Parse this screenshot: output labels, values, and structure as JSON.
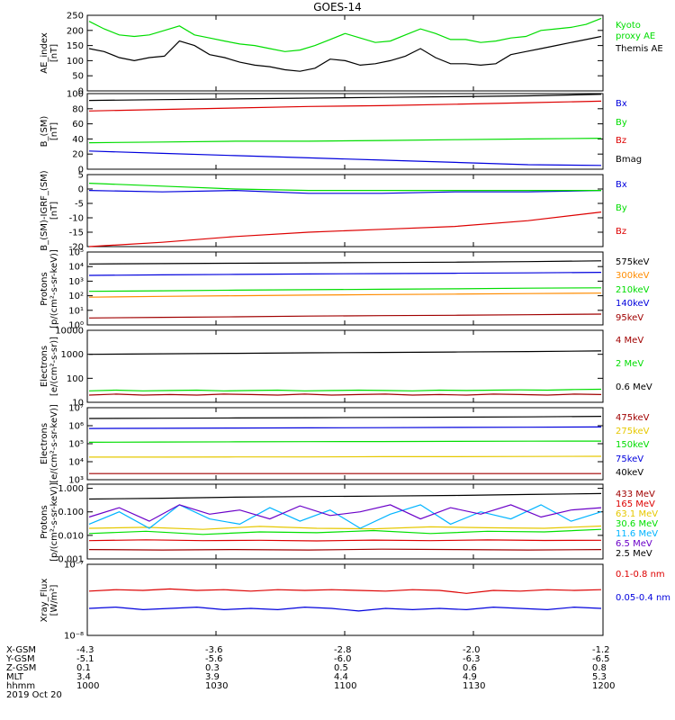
{
  "title": "GOES-14",
  "colors": {
    "black": "#000000",
    "red": "#dd0000",
    "green": "#00dd00",
    "blue": "#0000dd",
    "orange": "#ff8c00",
    "yellow": "#e6c800",
    "purple": "#6a00c8",
    "cyan": "#00b4ff",
    "lime": "#00e000",
    "darkred": "#a00000"
  },
  "chart_data": [
    {
      "type": "line",
      "ylabel": "AE_index\n[nT]",
      "ylim": [
        0,
        250
      ],
      "yticks": [
        "0",
        "50",
        "100",
        "150",
        "200",
        "250"
      ],
      "yvals": [
        0,
        50,
        100,
        150,
        200,
        250
      ],
      "series": [
        {
          "name": "Kyoto\nproxy AE",
          "color": "green",
          "values": [
            230,
            205,
            185,
            180,
            185,
            200,
            215,
            185,
            175,
            165,
            155,
            150,
            140,
            130,
            135,
            150,
            170,
            190,
            175,
            160,
            165,
            185,
            205,
            190,
            170,
            170,
            160,
            165,
            175,
            180,
            200,
            205,
            210,
            220,
            240
          ]
        },
        {
          "name": "Themis AE",
          "color": "black",
          "values": [
            140,
            130,
            110,
            100,
            110,
            115,
            165,
            150,
            120,
            110,
            95,
            85,
            80,
            70,
            65,
            75,
            105,
            100,
            85,
            90,
            100,
            115,
            140,
            110,
            90,
            90,
            85,
            90,
            120,
            130,
            140,
            150,
            160,
            170,
            180
          ]
        }
      ]
    },
    {
      "type": "line",
      "ylabel": "B_(SM)\n[nT]",
      "ylim": [
        0,
        100
      ],
      "yticks": [
        "0",
        "20",
        "40",
        "60",
        "80",
        "100"
      ],
      "yvals": [
        0,
        20,
        40,
        60,
        80,
        100
      ],
      "series": [
        {
          "name": "Bx",
          "color": "blue",
          "values": [
            24,
            21,
            18,
            15,
            12,
            9,
            6,
            5
          ]
        },
        {
          "name": "By",
          "color": "green",
          "values": [
            35,
            36,
            37,
            37,
            38,
            39,
            40,
            41
          ]
        },
        {
          "name": "Bz",
          "color": "red",
          "values": [
            77,
            79,
            81,
            83,
            84,
            86,
            88,
            90
          ]
        },
        {
          "name": "Bmag",
          "color": "black",
          "values": [
            91,
            92,
            93,
            94,
            95,
            96,
            97,
            99
          ]
        }
      ]
    },
    {
      "type": "line",
      "ylabel": "B_(SM)-IGRF_(SM)\n[nT]",
      "ylim": [
        -20,
        5
      ],
      "yticks": [
        "-20",
        "-15",
        "-10",
        "-5",
        "0",
        "5"
      ],
      "yvals": [
        -20,
        -15,
        -10,
        -5,
        0,
        5
      ],
      "series": [
        {
          "name": "Bx",
          "color": "blue",
          "values": [
            -0.5,
            -1,
            -0.5,
            -1.5,
            -1.5,
            -1,
            -1,
            -0.5
          ]
        },
        {
          "name": "By",
          "color": "green",
          "values": [
            2,
            1,
            0,
            -0.5,
            -0.5,
            -0.5,
            -0.5,
            -0.5
          ]
        },
        {
          "name": "Bz",
          "color": "red",
          "values": [
            -20,
            -18.5,
            -16.5,
            -15,
            -14,
            -13,
            -11,
            -8
          ]
        }
      ]
    },
    {
      "type": "line",
      "log": true,
      "ylabel": "Protons\n[p/(cm²-s-sr-keV)]",
      "ylim": [
        1,
        100000
      ],
      "yticks": [
        "10⁰",
        "10¹",
        "10²",
        "10³",
        "10⁴",
        "10⁵"
      ],
      "yvals": [
        1,
        10,
        100,
        1000,
        10000,
        100000
      ],
      "series": [
        {
          "name": "575keV",
          "color": "black",
          "values": [
            15000,
            16000,
            17000,
            18000,
            19000,
            20000,
            22000,
            25000
          ]
        },
        {
          "name": "300keV",
          "color": "orange",
          "values": [
            80,
            90,
            100,
            110,
            120,
            130,
            140,
            150
          ]
        },
        {
          "name": "210keV",
          "color": "green",
          "values": [
            200,
            220,
            240,
            260,
            280,
            300,
            330,
            350
          ]
        },
        {
          "name": "140keV",
          "color": "blue",
          "values": [
            2500,
            2700,
            2900,
            3100,
            3300,
            3500,
            3700,
            4000
          ]
        },
        {
          "name": "95keV",
          "color": "darkred",
          "values": [
            3,
            3.3,
            3.6,
            4,
            4.3,
            4.6,
            5,
            5.5
          ]
        }
      ]
    },
    {
      "type": "line",
      "log": true,
      "ylabel": "Electrons\n[e/(cm²-s-sr)]",
      "ylim": [
        10,
        10000
      ],
      "yticks": [
        "10",
        "100",
        "1000",
        "10000"
      ],
      "yvals": [
        10,
        100,
        1000,
        10000
      ],
      "series": [
        {
          "name": "4 MeV",
          "color": "darkred",
          "values": [
            20,
            22,
            20,
            21,
            20,
            22,
            21,
            20,
            22,
            20,
            21,
            22,
            20,
            21,
            20,
            22,
            21,
            20,
            22,
            21
          ]
        },
        {
          "name": "2 MeV",
          "color": "green",
          "values": [
            30,
            32,
            30,
            31,
            32,
            30,
            31,
            32,
            30,
            31,
            32,
            31,
            30,
            32,
            31,
            32,
            33,
            32,
            34,
            35
          ]
        },
        {
          "name": "0.6 MeV",
          "color": "black",
          "values": [
            1000,
            1050,
            1100,
            1150,
            1200,
            1250,
            1300,
            1380
          ]
        }
      ]
    },
    {
      "type": "line",
      "log": true,
      "ylabel": "Electrons\n[e/(cm²-s-sr-keV)]",
      "ylim": [
        1000,
        10000000
      ],
      "yticks": [
        "10³",
        "10⁴",
        "10⁵",
        "10⁶",
        "10⁷"
      ],
      "yvals": [
        1000,
        10000,
        100000,
        1000000,
        10000000
      ],
      "series": [
        {
          "name": "475keV",
          "color": "darkred",
          "values": [
            2200,
            2200,
            2200,
            2200,
            2200,
            2200,
            2200,
            2200
          ]
        },
        {
          "name": "275keV",
          "color": "yellow",
          "values": [
            18000,
            18000,
            18500,
            18500,
            19000,
            19000,
            19500,
            20000
          ]
        },
        {
          "name": "150keV",
          "color": "green",
          "values": [
            120000,
            125000,
            128000,
            130000,
            132000,
            135000,
            138000,
            140000
          ]
        },
        {
          "name": "75keV",
          "color": "blue",
          "values": [
            700000,
            720000,
            740000,
            760000,
            780000,
            800000,
            820000,
            850000
          ]
        },
        {
          "name": "40keV",
          "color": "black",
          "values": [
            2500000,
            2600000,
            2700000,
            2800000,
            2900000,
            3000000,
            3100000,
            3300000
          ]
        }
      ]
    },
    {
      "type": "line",
      "log": true,
      "ylabel": "Protons\n[p/(cm²-s-sr-keV)]",
      "ylim": [
        0.001,
        1.5
      ],
      "yticks": [
        "0.001",
        "0.010",
        "0.100",
        "1.000"
      ],
      "yvals": [
        0.001,
        0.01,
        0.1,
        1
      ],
      "series": [
        {
          "name": "433 MeV",
          "color": "darkred",
          "values": [
            0.0025,
            0.0024,
            0.0025,
            0.0024,
            0.0026,
            0.0025,
            0.0024,
            0.0025
          ]
        },
        {
          "name": "165 MeV",
          "color": "red",
          "values": [
            0.006,
            0.0065,
            0.006,
            0.0062,
            0.0058,
            0.0063,
            0.006,
            0.0064,
            0.0061,
            0.0062
          ]
        },
        {
          "name": "63.1 MeV",
          "color": "yellow",
          "values": [
            0.02,
            0.022,
            0.018,
            0.024,
            0.02,
            0.019,
            0.023,
            0.021,
            0.02,
            0.025
          ]
        },
        {
          "name": "30.6 MeV",
          "color": "lime",
          "values": [
            0.012,
            0.015,
            0.011,
            0.014,
            0.013,
            0.016,
            0.012,
            0.015,
            0.014,
            0.018
          ]
        },
        {
          "name": "11.6 MeV",
          "color": "cyan",
          "values": [
            0.03,
            0.1,
            0.02,
            0.2,
            0.05,
            0.03,
            0.15,
            0.04,
            0.12,
            0.02,
            0.08,
            0.2,
            0.03,
            0.1,
            0.05,
            0.2,
            0.04,
            0.1
          ]
        },
        {
          "name": "6.5 MeV",
          "color": "purple",
          "values": [
            0.06,
            0.15,
            0.04,
            0.2,
            0.08,
            0.12,
            0.05,
            0.18,
            0.07,
            0.1,
            0.2,
            0.05,
            0.15,
            0.08,
            0.2,
            0.06,
            0.12,
            0.15
          ]
        },
        {
          "name": "2.5 MeV",
          "color": "black",
          "values": [
            0.35,
            0.38,
            0.42,
            0.45,
            0.47,
            0.5,
            0.55,
            0.6
          ]
        }
      ]
    },
    {
      "type": "line",
      "log": true,
      "ylabel": "Xray_Flux\n[W/m²]",
      "ylim": [
        1e-08,
        1e-07
      ],
      "yticks": [
        "10⁻⁸",
        "10⁻⁷"
      ],
      "yvals": [
        1e-08,
        1e-07
      ],
      "series": [
        {
          "name": "0.1-0.8 nm",
          "color": "red",
          "values": [
            4.2e-08,
            4.4e-08,
            4.3e-08,
            4.5e-08,
            4.3e-08,
            4.4e-08,
            4.2e-08,
            4.4e-08,
            4.3e-08,
            4.4e-08,
            4.3e-08,
            4.2e-08,
            4.4e-08,
            4.3e-08,
            3.9e-08,
            4.3e-08,
            4.2e-08,
            4.4e-08,
            4.3e-08,
            4.4e-08
          ]
        },
        {
          "name": "0.05-0.4 nm",
          "color": "blue",
          "values": [
            2.4e-08,
            2.5e-08,
            2.3e-08,
            2.4e-08,
            2.5e-08,
            2.3e-08,
            2.4e-08,
            2.3e-08,
            2.5e-08,
            2.4e-08,
            2.2e-08,
            2.4e-08,
            2.3e-08,
            2.4e-08,
            2.3e-08,
            2.5e-08,
            2.4e-08,
            2.3e-08,
            2.5e-08,
            2.4e-08
          ]
        }
      ]
    }
  ],
  "orbit": {
    "rows": [
      "X-GSM",
      "Y-GSM",
      "Z-GSM",
      "MLT",
      "hhmm",
      "2019 Oct 20"
    ],
    "columns": [
      [
        "-4.3",
        "-5.1",
        "0.1",
        "3.4",
        "1000"
      ],
      [
        "-3.6",
        "-5.6",
        "0.3",
        "3.9",
        "1030"
      ],
      [
        "-2.8",
        "-6.0",
        "0.5",
        "4.4",
        "1100"
      ],
      [
        "-2.0",
        "-6.3",
        "0.6",
        "4.9",
        "1130"
      ],
      [
        "-1.2",
        "-6.5",
        "0.8",
        "5.3",
        "1200"
      ]
    ]
  }
}
